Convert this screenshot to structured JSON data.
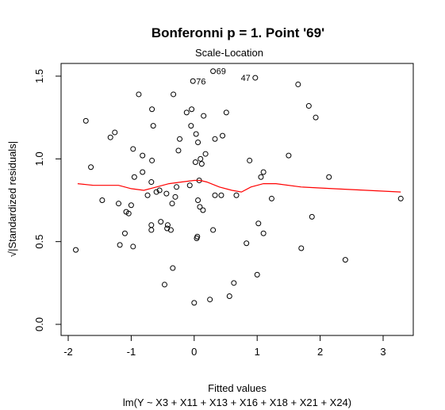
{
  "chart_data": {
    "type": "scatter",
    "title": "Bonferonni p = 1. Point '69'",
    "subtitle": "Scale-Location",
    "xlabel": "Fitted values",
    "xlabel2": "lm(Y ~ X3 + X11 + X13 + X16 + X18 + X21 + X24)",
    "ylabel": "√|Standardized residuals|",
    "xlim": [
      -2.0,
      3.4
    ],
    "ylim": [
      -0.05,
      1.6
    ],
    "xticks": [
      -2,
      -1,
      0,
      1,
      2,
      3
    ],
    "yticks": [
      0.0,
      0.5,
      1.0,
      1.5
    ],
    "xtick_labels": [
      "-2",
      "-1",
      "0",
      "1",
      "2",
      "3"
    ],
    "ytick_labels": [
      "0.0",
      "0.5",
      "1.0",
      "1.5"
    ],
    "grid": false,
    "smooth_color": "#ff0000",
    "points": [
      [
        -1.88,
        0.45
      ],
      [
        -1.72,
        1.23
      ],
      [
        -1.64,
        0.95
      ],
      [
        -1.46,
        0.75
      ],
      [
        -1.33,
        1.13
      ],
      [
        -1.26,
        1.16
      ],
      [
        -1.2,
        0.73
      ],
      [
        -1.18,
        0.48
      ],
      [
        -1.1,
        0.55
      ],
      [
        -1.08,
        0.68
      ],
      [
        -1.04,
        0.67
      ],
      [
        -1.0,
        0.72
      ],
      [
        -0.97,
        0.47
      ],
      [
        -0.97,
        1.06
      ],
      [
        -0.95,
        0.89
      ],
      [
        -0.88,
        1.39
      ],
      [
        -0.82,
        0.92
      ],
      [
        -0.82,
        1.02
      ],
      [
        -0.74,
        0.78
      ],
      [
        -0.68,
        0.86
      ],
      [
        -0.68,
        0.57
      ],
      [
        -0.68,
        0.6
      ],
      [
        -0.67,
        0.99
      ],
      [
        -0.67,
        1.3
      ],
      [
        -0.65,
        1.2
      ],
      [
        -0.6,
        0.8
      ],
      [
        -0.55,
        0.81
      ],
      [
        -0.53,
        0.62
      ],
      [
        -0.47,
        0.24
      ],
      [
        -0.44,
        0.79
      ],
      [
        -0.43,
        0.58
      ],
      [
        -0.42,
        0.6
      ],
      [
        -0.37,
        0.57
      ],
      [
        -0.35,
        0.73
      ],
      [
        -0.34,
        0.34
      ],
      [
        -0.33,
        1.39
      ],
      [
        -0.3,
        0.77
      ],
      [
        -0.28,
        0.83
      ],
      [
        -0.25,
        1.05
      ],
      [
        -0.23,
        1.12
      ],
      [
        -0.12,
        1.28
      ],
      [
        -0.07,
        0.84
      ],
      [
        -0.05,
        1.2
      ],
      [
        -0.04,
        1.3
      ],
      [
        0.0,
        0.13
      ],
      [
        0.02,
        0.98
      ],
      [
        0.03,
        1.15
      ],
      [
        0.04,
        0.52
      ],
      [
        0.05,
        0.53
      ],
      [
        0.06,
        0.75
      ],
      [
        0.06,
        1.1
      ],
      [
        0.08,
        0.87
      ],
      [
        0.09,
        0.71
      ],
      [
        0.1,
        1.0
      ],
      [
        0.12,
        0.97
      ],
      [
        0.14,
        0.69
      ],
      [
        0.15,
        1.26
      ],
      [
        0.18,
        1.03
      ],
      [
        0.25,
        0.15
      ],
      [
        0.3,
        0.57
      ],
      [
        0.33,
        0.78
      ],
      [
        0.33,
        1.12
      ],
      [
        0.43,
        0.78
      ],
      [
        0.45,
        1.14
      ],
      [
        0.51,
        1.28
      ],
      [
        0.56,
        0.17
      ],
      [
        0.63,
        0.25
      ],
      [
        0.67,
        0.78
      ],
      [
        0.83,
        0.49
      ],
      [
        0.88,
        0.99
      ],
      [
        1.0,
        0.3
      ],
      [
        1.02,
        0.61
      ],
      [
        1.06,
        0.89
      ],
      [
        1.1,
        0.55
      ],
      [
        1.1,
        0.92
      ],
      [
        1.23,
        0.76
      ],
      [
        1.5,
        1.02
      ],
      [
        1.65,
        1.45
      ],
      [
        1.7,
        0.46
      ],
      [
        1.82,
        1.32
      ],
      [
        1.87,
        0.65
      ],
      [
        1.93,
        1.25
      ],
      [
        2.14,
        0.89
      ],
      [
        2.4,
        0.39
      ],
      [
        3.28,
        0.76
      ],
      [
        0.3,
        1.53
      ],
      [
        0.97,
        1.49
      ],
      [
        -0.02,
        1.47
      ]
    ],
    "labeled_points": [
      {
        "label": "69",
        "x": 0.3,
        "y": 1.53
      },
      {
        "label": "47",
        "x": 0.97,
        "y": 1.49
      },
      {
        "label": "76",
        "x": -0.02,
        "y": 1.47
      }
    ],
    "smooth_line": [
      [
        -1.85,
        0.85
      ],
      [
        -1.6,
        0.84
      ],
      [
        -1.2,
        0.84
      ],
      [
        -1.0,
        0.82
      ],
      [
        -0.8,
        0.81
      ],
      [
        -0.6,
        0.83
      ],
      [
        -0.4,
        0.85
      ],
      [
        -0.2,
        0.86
      ],
      [
        0.0,
        0.87
      ],
      [
        0.1,
        0.87
      ],
      [
        0.2,
        0.86
      ],
      [
        0.4,
        0.83
      ],
      [
        0.6,
        0.81
      ],
      [
        0.75,
        0.8
      ],
      [
        0.9,
        0.83
      ],
      [
        1.1,
        0.85
      ],
      [
        1.3,
        0.85
      ],
      [
        1.7,
        0.83
      ],
      [
        2.2,
        0.82
      ],
      [
        3.28,
        0.8
      ]
    ]
  }
}
